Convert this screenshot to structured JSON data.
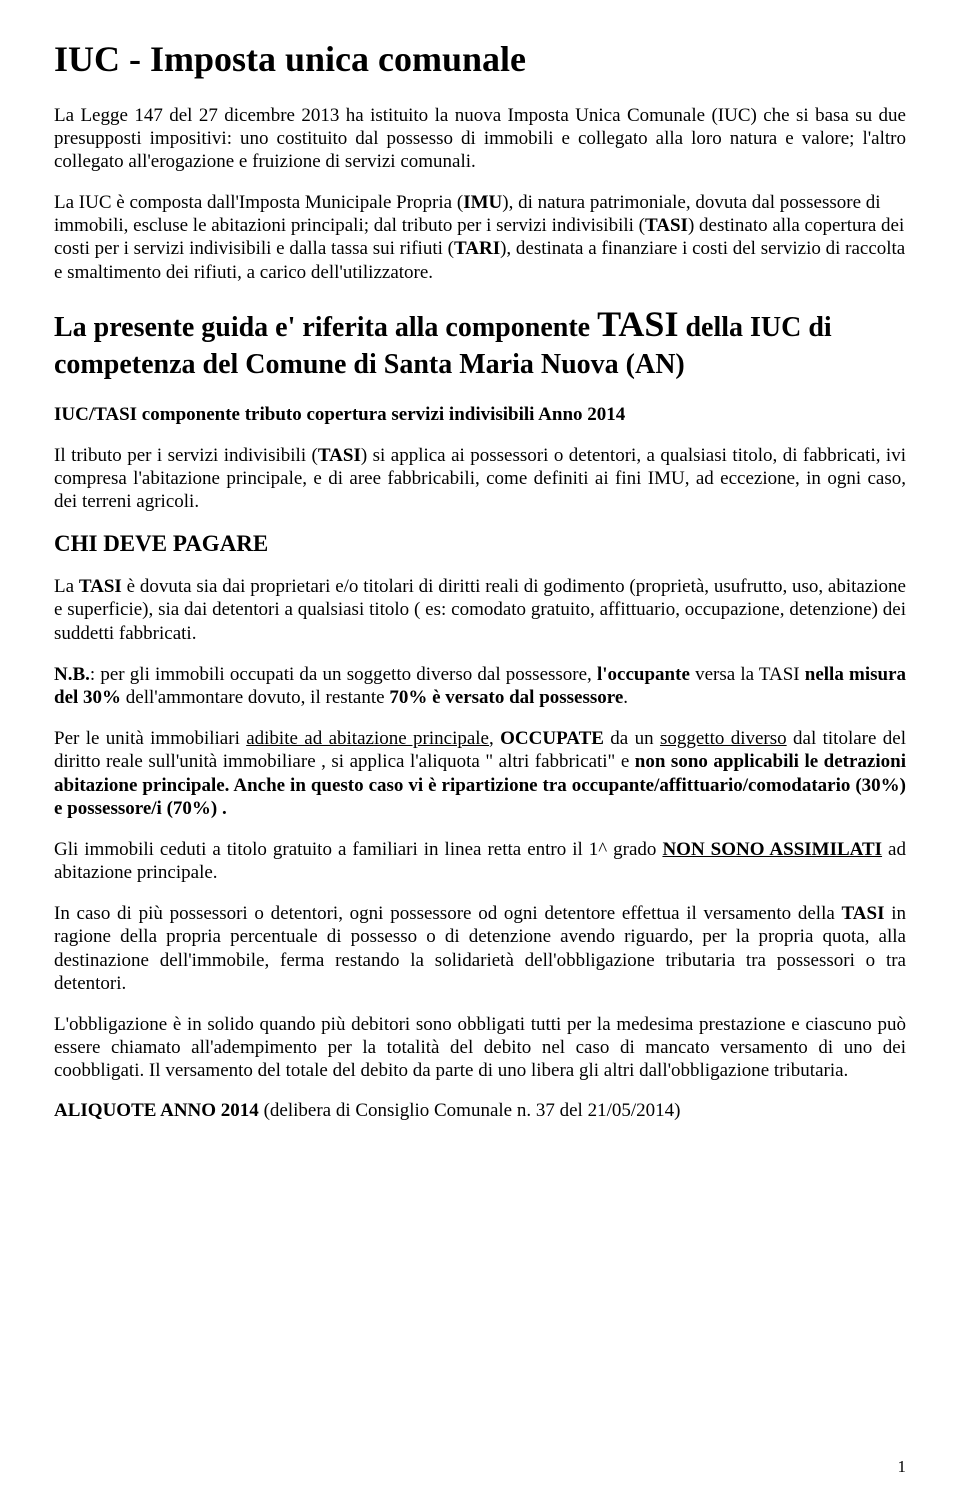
{
  "title": "IUC - Imposta unica comunale",
  "p1a": "La Legge 147 del 27 dicembre 2013 ha istituito la nuova Imposta Unica Comunale (IUC) che si basa su due presupposti impositivi: uno costituito dal possesso di immobili e collegato alla loro natura e valore; l'altro collegato all'erogazione e fruizione di servizi comunali.",
  "p2a": "La IUC è composta dall'Imposta Municipale Propria (",
  "p2b": "IMU",
  "p2c": "), di natura patrimoniale, dovuta dal possessore di immobili, escluse le abitazioni principali; dal tributo per i servizi indivisibili (",
  "p2d": "TASI",
  "p2e": ") destinato alla copertura dei costi per i servizi indivisibili e dalla tassa sui rifiuti (",
  "p2f": "TARI",
  "p2g": "), destinata a finanziare i costi del servizio di raccolta e smaltimento dei rifiuti, a carico dell'utilizzatore.",
  "subtitle_a": "La presente guida e' riferita alla componente ",
  "subtitle_b": "TASI",
  "subtitle_c": " della IUC di competenza del Comune di  Santa Maria Nuova (AN)",
  "section1": "IUC/TASI  componente tributo copertura servizi indivisibili  Anno 2014",
  "p3a": "Il tributo per i servizi indivisibili (",
  "p3b": "TASI",
  "p3c": ") si applica ai possessori o detentori, a qualsiasi titolo, di fabbricati, ivi compresa l'abitazione principale, e di aree fabbricabili, come definiti ai fini IMU, ad eccezione, in ogni caso, dei terreni agricoli.",
  "section2": "CHI DEVE PAGARE",
  "p4a": "La ",
  "p4b": "TASI",
  "p4c": " è dovuta sia dai proprietari e/o titolari di diritti reali di godimento (proprietà, usufrutto, uso, abitazione e superficie), sia dai detentori a  qualsiasi titolo ( es: comodato gratuito, affittuario, occupazione, detenzione) dei suddetti fabbricati.",
  "p5a": "N.B.",
  "p5b": ": per gli immobili  occupati da un soggetto diverso dal possessore, ",
  "p5c": "l'occupante",
  "p5d": " versa la TASI ",
  "p5e": "nella misura del 30%",
  "p5f": " dell'ammontare dovuto, il restante ",
  "p5g": "70% è versato dal possessore",
  "p5h": ".",
  "p6a": "Per le unità immobiliari ",
  "p6b": "adibite ad abitazione principale",
  "p6c": ", ",
  "p6d": "OCCUPATE",
  "p6e": " da un ",
  "p6f": "soggetto diverso",
  "p6g": " dal titolare del diritto reale sull'unità immobiliare , si applica l'aliquota \" altri fabbricati\" e  ",
  "p6h": "non sono applicabili le detrazioni abitazione principale. Anche  in questo caso vi è ripartizione tra occupante/affittuario/comodatario (30%) e possessore/i (70%) .",
  "p7a": "Gli immobili ceduti a titolo gratuito a familiari in linea retta entro il 1^ grado  ",
  "p7b": "NON SONO ASSIMILATI",
  "p7c": "  ad abitazione principale.",
  "p8a": "In caso di più possessori o detentori, ogni possessore od ogni detentore effettua il versamento della ",
  "p8b": "TASI",
  "p8c": " in ragione della propria percentuale di possesso o di detenzione avendo riguardo, per la propria quota, alla destinazione dell'immobile, ferma restando la solidarietà dell'obbligazione tributaria tra possessori o tra detentori.",
  "p9": "L'obbligazione è in solido quando più debitori sono obbligati tutti per la medesima prestazione e ciascuno può essere chiamato all'adempimento per la totalità del debito nel caso di mancato versamento di uno dei coobbligati. Il versamento del totale del debito da parte di uno libera gli altri dall'obbligazione tributaria.",
  "section3a": "ALIQUOTE ANNO 2014 ",
  "section3b": "(delibera  di Consiglio Comunale n. 37 del 21/05/2014)",
  "page_number": "1"
}
